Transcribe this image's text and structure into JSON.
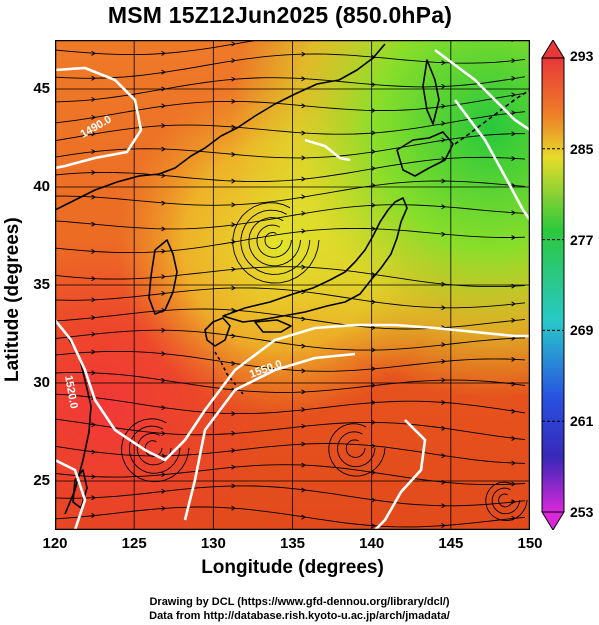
{
  "title": "MSM 15Z12Jun2025 (850.0hPa)",
  "x_axis": {
    "label": "Longitude (degrees)",
    "range": [
      120,
      150
    ],
    "ticks": [
      "120",
      "125",
      "130",
      "135",
      "140",
      "145",
      "150"
    ]
  },
  "y_axis": {
    "label": "Latitude  (degrees)",
    "range": [
      22.5,
      47.5
    ],
    "ticks": [
      "25",
      "30",
      "35",
      "40",
      "45"
    ]
  },
  "colorbar": {
    "range": [
      253,
      293
    ],
    "ticks": [
      "293",
      "285",
      "277",
      "269",
      "261",
      "253"
    ]
  },
  "contour_labels": [
    "1490.0",
    "1520.0",
    "1550.0"
  ],
  "credits": {
    "line1": "Drawing by DCL (https://www.gfd-dennou.org/library/dcl/)",
    "line2": "Data from http://database.rish.kyoto-u.ac.jp/arch/jmadata/"
  },
  "colors": {
    "warm": "#e8501e",
    "hot": "#f03a3a",
    "yellow": "#e6e628",
    "green": "#3cd23c",
    "coast": "#000000",
    "contour": "#ffffff"
  }
}
